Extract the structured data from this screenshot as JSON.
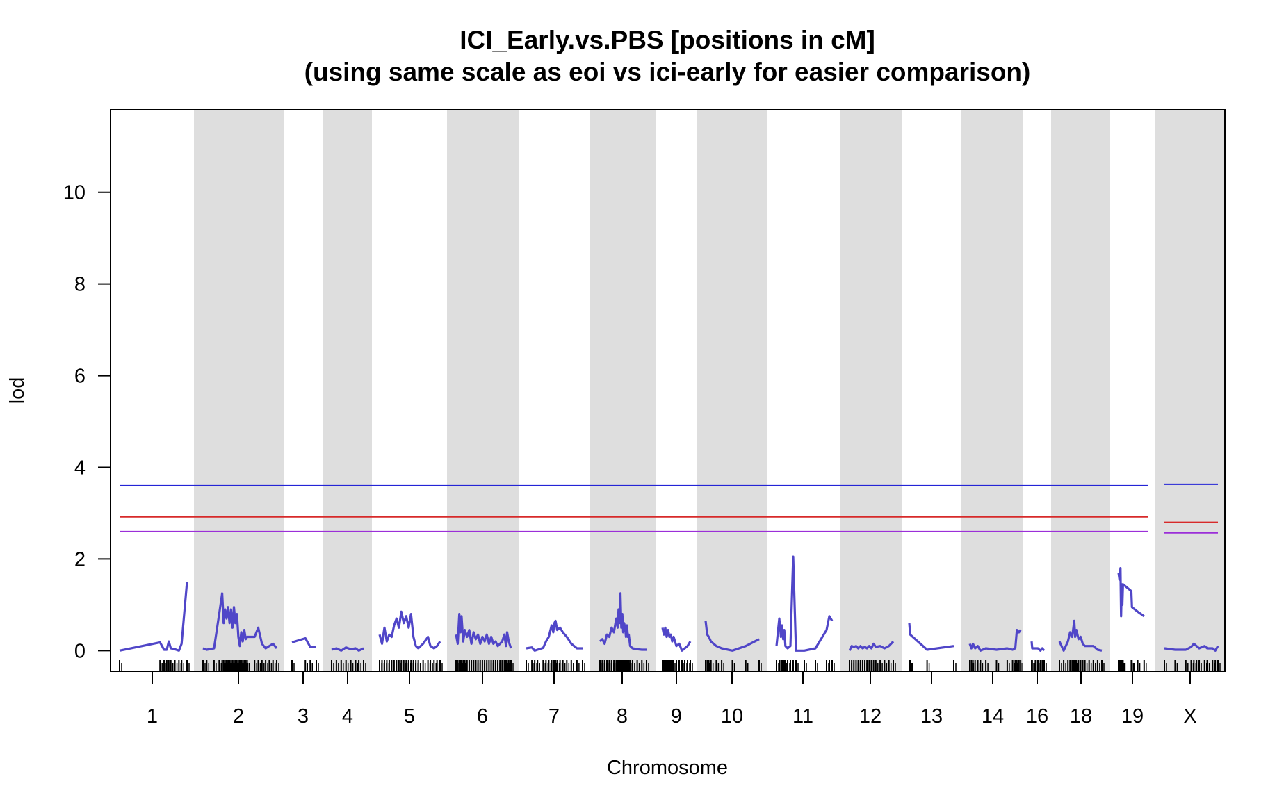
{
  "chart_data": {
    "type": "line",
    "title": "ICI_Early.vs.PBS [positions in cM]",
    "subtitle": "(using same scale as eoi vs ici-early for easier comparison)",
    "xlabel": "Chromosome",
    "ylabel": "lod",
    "ylim": [
      -0.45,
      11.8
    ],
    "yticks": [
      0,
      2,
      4,
      6,
      8,
      10
    ],
    "series_color": "#5046C8",
    "band_color": "#DEDEDE",
    "chromosomes": [
      {
        "name": "1",
        "shaded": false,
        "lod": [
          [
            0.0,
            0.0
          ],
          [
            0.6,
            0.18
          ],
          [
            0.66,
            0.02
          ],
          [
            0.7,
            0.02
          ],
          [
            0.73,
            0.2
          ],
          [
            0.76,
            0.05
          ],
          [
            0.82,
            0.03
          ],
          [
            0.88,
            0.0
          ],
          [
            0.92,
            0.15
          ],
          [
            1.0,
            1.5
          ]
        ]
      },
      {
        "name": "2",
        "shaded": true,
        "lod": [
          [
            0.0,
            0.05
          ],
          [
            0.05,
            0.02
          ],
          [
            0.15,
            0.05
          ],
          [
            0.22,
            0.8
          ],
          [
            0.26,
            1.25
          ],
          [
            0.28,
            0.6
          ],
          [
            0.3,
            0.9
          ],
          [
            0.32,
            0.7
          ],
          [
            0.34,
            0.95
          ],
          [
            0.36,
            0.6
          ],
          [
            0.38,
            0.9
          ],
          [
            0.4,
            0.5
          ],
          [
            0.42,
            0.95
          ],
          [
            0.44,
            0.6
          ],
          [
            0.46,
            0.8
          ],
          [
            0.48,
            0.3
          ],
          [
            0.5,
            0.1
          ],
          [
            0.52,
            0.4
          ],
          [
            0.54,
            0.2
          ],
          [
            0.56,
            0.45
          ],
          [
            0.58,
            0.25
          ],
          [
            0.6,
            0.3
          ],
          [
            0.7,
            0.3
          ],
          [
            0.75,
            0.5
          ],
          [
            0.8,
            0.15
          ],
          [
            0.85,
            0.05
          ],
          [
            0.9,
            0.1
          ],
          [
            0.95,
            0.15
          ],
          [
            1.0,
            0.05
          ]
        ]
      },
      {
        "name": "3",
        "shaded": false,
        "lod": [
          [
            0.0,
            0.18
          ],
          [
            0.55,
            0.27
          ],
          [
            0.75,
            0.08
          ],
          [
            1.0,
            0.08
          ]
        ]
      },
      {
        "name": "4",
        "shaded": true,
        "lod": [
          [
            0.0,
            0.02
          ],
          [
            0.15,
            0.05
          ],
          [
            0.3,
            0.0
          ],
          [
            0.45,
            0.07
          ],
          [
            0.6,
            0.03
          ],
          [
            0.75,
            0.05
          ],
          [
            0.85,
            0.0
          ],
          [
            1.0,
            0.05
          ]
        ]
      },
      {
        "name": "5",
        "shaded": false,
        "lod": [
          [
            0.0,
            0.35
          ],
          [
            0.04,
            0.15
          ],
          [
            0.08,
            0.5
          ],
          [
            0.12,
            0.2
          ],
          [
            0.16,
            0.35
          ],
          [
            0.2,
            0.3
          ],
          [
            0.24,
            0.55
          ],
          [
            0.28,
            0.7
          ],
          [
            0.32,
            0.5
          ],
          [
            0.36,
            0.85
          ],
          [
            0.4,
            0.6
          ],
          [
            0.44,
            0.75
          ],
          [
            0.48,
            0.5
          ],
          [
            0.52,
            0.8
          ],
          [
            0.56,
            0.3
          ],
          [
            0.6,
            0.1
          ],
          [
            0.64,
            0.05
          ],
          [
            0.72,
            0.15
          ],
          [
            0.8,
            0.3
          ],
          [
            0.84,
            0.1
          ],
          [
            0.9,
            0.05
          ],
          [
            0.95,
            0.1
          ],
          [
            1.0,
            0.2
          ]
        ]
      },
      {
        "name": "6",
        "shaded": true,
        "lod": [
          [
            0.0,
            0.35
          ],
          [
            0.03,
            0.15
          ],
          [
            0.06,
            0.8
          ],
          [
            0.08,
            0.4
          ],
          [
            0.1,
            0.75
          ],
          [
            0.13,
            0.2
          ],
          [
            0.16,
            0.45
          ],
          [
            0.2,
            0.3
          ],
          [
            0.24,
            0.45
          ],
          [
            0.28,
            0.15
          ],
          [
            0.32,
            0.4
          ],
          [
            0.36,
            0.25
          ],
          [
            0.4,
            0.35
          ],
          [
            0.44,
            0.15
          ],
          [
            0.48,
            0.3
          ],
          [
            0.52,
            0.2
          ],
          [
            0.56,
            0.35
          ],
          [
            0.6,
            0.15
          ],
          [
            0.64,
            0.3
          ],
          [
            0.68,
            0.15
          ],
          [
            0.72,
            0.2
          ],
          [
            0.76,
            0.1
          ],
          [
            0.8,
            0.15
          ],
          [
            0.84,
            0.2
          ],
          [
            0.88,
            0.35
          ],
          [
            0.91,
            0.1
          ],
          [
            0.93,
            0.4
          ],
          [
            0.96,
            0.2
          ],
          [
            1.0,
            0.05
          ]
        ]
      },
      {
        "name": "7",
        "shaded": false,
        "lod": [
          [
            0.0,
            0.05
          ],
          [
            0.1,
            0.07
          ],
          [
            0.15,
            0.0
          ],
          [
            0.2,
            0.02
          ],
          [
            0.3,
            0.06
          ],
          [
            0.35,
            0.2
          ],
          [
            0.4,
            0.3
          ],
          [
            0.45,
            0.55
          ],
          [
            0.48,
            0.4
          ],
          [
            0.5,
            0.6
          ],
          [
            0.52,
            0.65
          ],
          [
            0.55,
            0.45
          ],
          [
            0.6,
            0.5
          ],
          [
            0.65,
            0.4
          ],
          [
            0.72,
            0.3
          ],
          [
            0.8,
            0.15
          ],
          [
            0.9,
            0.05
          ],
          [
            1.0,
            0.05
          ]
        ]
      },
      {
        "name": "8",
        "shaded": true,
        "lod": [
          [
            0.0,
            0.2
          ],
          [
            0.05,
            0.25
          ],
          [
            0.1,
            0.15
          ],
          [
            0.15,
            0.35
          ],
          [
            0.2,
            0.3
          ],
          [
            0.25,
            0.5
          ],
          [
            0.3,
            0.4
          ],
          [
            0.35,
            0.7
          ],
          [
            0.38,
            0.5
          ],
          [
            0.4,
            0.9
          ],
          [
            0.42,
            0.6
          ],
          [
            0.44,
            1.25
          ],
          [
            0.46,
            0.5
          ],
          [
            0.48,
            0.8
          ],
          [
            0.5,
            0.4
          ],
          [
            0.52,
            0.6
          ],
          [
            0.54,
            0.5
          ],
          [
            0.56,
            0.3
          ],
          [
            0.58,
            0.55
          ],
          [
            0.6,
            0.3
          ],
          [
            0.62,
            0.35
          ],
          [
            0.65,
            0.1
          ],
          [
            0.7,
            0.05
          ],
          [
            0.8,
            0.03
          ],
          [
            0.9,
            0.02
          ],
          [
            1.0,
            0.02
          ]
        ]
      },
      {
        "name": "9",
        "shaded": false,
        "lod": [
          [
            0.0,
            0.5
          ],
          [
            0.05,
            0.35
          ],
          [
            0.1,
            0.5
          ],
          [
            0.15,
            0.3
          ],
          [
            0.2,
            0.45
          ],
          [
            0.25,
            0.3
          ],
          [
            0.3,
            0.35
          ],
          [
            0.35,
            0.2
          ],
          [
            0.4,
            0.3
          ],
          [
            0.5,
            0.1
          ],
          [
            0.6,
            0.15
          ],
          [
            0.7,
            0.0
          ],
          [
            0.8,
            0.05
          ],
          [
            0.9,
            0.1
          ],
          [
            1.0,
            0.2
          ]
        ]
      },
      {
        "name": "10",
        "shaded": true,
        "lod": [
          [
            0.0,
            0.65
          ],
          [
            0.03,
            0.35
          ],
          [
            0.06,
            0.3
          ],
          [
            0.1,
            0.2
          ],
          [
            0.2,
            0.1
          ],
          [
            0.3,
            0.05
          ],
          [
            0.5,
            0.0
          ],
          [
            0.75,
            0.1
          ],
          [
            1.0,
            0.25
          ]
        ]
      },
      {
        "name": "11",
        "shaded": false,
        "lod": [
          [
            0.0,
            0.1
          ],
          [
            0.05,
            0.7
          ],
          [
            0.08,
            0.3
          ],
          [
            0.1,
            0.55
          ],
          [
            0.12,
            0.25
          ],
          [
            0.14,
            0.45
          ],
          [
            0.16,
            0.1
          ],
          [
            0.2,
            0.05
          ],
          [
            0.25,
            0.1
          ],
          [
            0.3,
            2.05
          ],
          [
            0.35,
            0.0
          ],
          [
            0.5,
            0.0
          ],
          [
            0.7,
            0.05
          ],
          [
            0.9,
            0.45
          ],
          [
            0.95,
            0.75
          ],
          [
            1.0,
            0.65
          ]
        ]
      },
      {
        "name": "12",
        "shaded": true,
        "lod": [
          [
            0.0,
            0.0
          ],
          [
            0.05,
            0.1
          ],
          [
            0.1,
            0.08
          ],
          [
            0.15,
            0.1
          ],
          [
            0.2,
            0.05
          ],
          [
            0.25,
            0.1
          ],
          [
            0.3,
            0.05
          ],
          [
            0.35,
            0.08
          ],
          [
            0.4,
            0.05
          ],
          [
            0.45,
            0.1
          ],
          [
            0.5,
            0.05
          ],
          [
            0.55,
            0.15
          ],
          [
            0.6,
            0.08
          ],
          [
            0.7,
            0.1
          ],
          [
            0.8,
            0.05
          ],
          [
            0.9,
            0.1
          ],
          [
            1.0,
            0.2
          ]
        ]
      },
      {
        "name": "13",
        "shaded": false,
        "lod": [
          [
            0.0,
            0.6
          ],
          [
            0.02,
            0.35
          ],
          [
            0.4,
            0.02
          ],
          [
            1.0,
            0.1
          ]
        ]
      },
      {
        "name": "14",
        "shaded": true,
        "lod": [
          [
            0.0,
            0.15
          ],
          [
            0.03,
            0.05
          ],
          [
            0.06,
            0.15
          ],
          [
            0.1,
            0.05
          ],
          [
            0.15,
            0.1
          ],
          [
            0.2,
            0.0
          ],
          [
            0.3,
            0.05
          ],
          [
            0.5,
            0.02
          ],
          [
            0.7,
            0.05
          ],
          [
            0.8,
            0.02
          ],
          [
            0.85,
            0.05
          ],
          [
            0.88,
            0.45
          ],
          [
            0.92,
            0.4
          ],
          [
            0.95,
            0.45
          ]
        ]
      },
      {
        "name": "16",
        "shaded": false,
        "lod": [
          [
            0.0,
            0.2
          ],
          [
            0.05,
            0.05
          ],
          [
            0.3,
            0.05
          ],
          [
            0.5,
            0.05
          ],
          [
            0.7,
            0.0
          ],
          [
            0.85,
            0.05
          ],
          [
            1.0,
            0.0
          ]
        ]
      },
      {
        "name": "18",
        "shaded": true,
        "lod": [
          [
            0.0,
            0.2
          ],
          [
            0.1,
            0.0
          ],
          [
            0.2,
            0.2
          ],
          [
            0.25,
            0.4
          ],
          [
            0.3,
            0.3
          ],
          [
            0.33,
            0.5
          ],
          [
            0.35,
            0.65
          ],
          [
            0.37,
            0.3
          ],
          [
            0.4,
            0.45
          ],
          [
            0.45,
            0.25
          ],
          [
            0.5,
            0.3
          ],
          [
            0.55,
            0.15
          ],
          [
            0.6,
            0.1
          ],
          [
            0.7,
            0.1
          ],
          [
            0.8,
            0.1
          ],
          [
            0.9,
            0.02
          ],
          [
            1.0,
            0.0
          ]
        ]
      },
      {
        "name": "19",
        "shaded": false,
        "lod": [
          [
            0.0,
            1.7
          ],
          [
            0.03,
            1.55
          ],
          [
            0.06,
            1.8
          ],
          [
            0.08,
            0.75
          ],
          [
            0.1,
            1.45
          ],
          [
            0.12,
            1.0
          ],
          [
            0.14,
            1.45
          ],
          [
            0.4,
            1.3
          ],
          [
            0.42,
            0.95
          ],
          [
            0.6,
            0.85
          ],
          [
            0.8,
            0.75
          ]
        ]
      },
      {
        "name": "X",
        "shaded": true,
        "lod": [
          [
            0.0,
            0.05
          ],
          [
            0.2,
            0.02
          ],
          [
            0.4,
            0.02
          ],
          [
            0.5,
            0.08
          ],
          [
            0.55,
            0.15
          ],
          [
            0.6,
            0.1
          ],
          [
            0.65,
            0.05
          ],
          [
            0.75,
            0.1
          ],
          [
            0.8,
            0.05
          ],
          [
            0.9,
            0.05
          ],
          [
            0.95,
            0.0
          ],
          [
            1.0,
            0.1
          ]
        ]
      }
    ],
    "thresholds": [
      {
        "color": "#2424D6",
        "autosome": 3.6,
        "x": 3.63
      },
      {
        "color": "#D72A2A",
        "autosome": 2.92,
        "x": 2.8
      },
      {
        "color": "#9B2FD8",
        "autosome": 2.6,
        "x": 2.57
      }
    ]
  }
}
